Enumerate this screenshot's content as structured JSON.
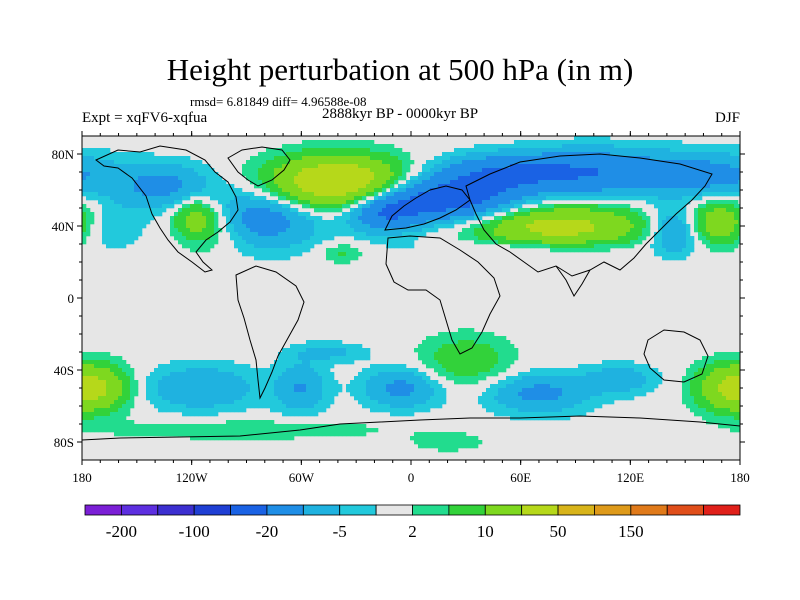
{
  "figure": {
    "title": "Height perturbation at 500 hPa (in m)",
    "stats": "rmsd= 6.81849 diff= 4.96588e-08",
    "left_label": "Expt = xqFV6-xqfua",
    "center_label": "2888kyr BP - 0000kyr BP",
    "right_label": "DJF"
  },
  "map": {
    "projection": "cylindrical equidistant",
    "lon_range": [
      -180,
      180
    ],
    "lat_range": [
      -90,
      90
    ],
    "lon_ticks": [
      {
        "value": -180,
        "label": "180"
      },
      {
        "value": -120,
        "label": "120W"
      },
      {
        "value": -60,
        "label": "60W"
      },
      {
        "value": 0,
        "label": "0"
      },
      {
        "value": 60,
        "label": "60E"
      },
      {
        "value": 120,
        "label": "120E"
      },
      {
        "value": 180,
        "label": "180"
      }
    ],
    "lat_ticks": [
      {
        "value": 80,
        "label": "80N"
      },
      {
        "value": 40,
        "label": "40N"
      },
      {
        "value": 0,
        "label": "0"
      },
      {
        "value": -40,
        "label": "40S"
      },
      {
        "value": -80,
        "label": "80S"
      }
    ],
    "field_features": [
      {
        "lon": -135,
        "lat": 62,
        "value": -12,
        "sx": 18,
        "sy": 9
      },
      {
        "lon": -118,
        "lat": 45,
        "value": 14,
        "sx": 9,
        "sy": 8
      },
      {
        "lon": -108,
        "lat": 38,
        "value": 6,
        "sx": 12,
        "sy": 10
      },
      {
        "lon": -80,
        "lat": 45,
        "value": -15,
        "sx": 22,
        "sy": 12
      },
      {
        "lon": -40,
        "lat": 64,
        "value": 35,
        "sx": 26,
        "sy": 10
      },
      {
        "lon": -15,
        "lat": 48,
        "value": -18,
        "sx": 14,
        "sy": 8
      },
      {
        "lon": 20,
        "lat": 55,
        "value": -28,
        "sx": 28,
        "sy": 9
      },
      {
        "lon": 50,
        "lat": 70,
        "value": -15,
        "sx": 25,
        "sy": 7
      },
      {
        "lon": 100,
        "lat": 70,
        "value": -18,
        "sx": 30,
        "sy": 9
      },
      {
        "lon": 165,
        "lat": 68,
        "value": -12,
        "sx": 25,
        "sy": 9
      },
      {
        "lon": 80,
        "lat": 40,
        "value": 25,
        "sx": 32,
        "sy": 8
      },
      {
        "lon": 60,
        "lat": 28,
        "value": -5,
        "sx": 40,
        "sy": 3
      },
      {
        "lon": 170,
        "lat": 42,
        "value": 18,
        "sx": 14,
        "sy": 9
      },
      {
        "lon": 145,
        "lat": 38,
        "value": -15,
        "sx": 10,
        "sy": 9
      },
      {
        "lon": -170,
        "lat": 40,
        "value": -8,
        "sx": 14,
        "sy": 9
      },
      {
        "lon": -38,
        "lat": 25,
        "value": 6,
        "sx": 8,
        "sy": 4
      },
      {
        "lon": -45,
        "lat": -30,
        "value": -6,
        "sx": 15,
        "sy": 4
      },
      {
        "lon": -115,
        "lat": -50,
        "value": -10,
        "sx": 22,
        "sy": 9
      },
      {
        "lon": -60,
        "lat": -50,
        "value": -10,
        "sx": 10,
        "sy": 10
      },
      {
        "lon": -5,
        "lat": -50,
        "value": -12,
        "sx": 15,
        "sy": 8
      },
      {
        "lon": 30,
        "lat": -35,
        "value": 9,
        "sx": 18,
        "sy": 10
      },
      {
        "lon": 70,
        "lat": -53,
        "value": -12,
        "sx": 20,
        "sy": 8
      },
      {
        "lon": 115,
        "lat": -45,
        "value": -8,
        "sx": 14,
        "sy": 6
      },
      {
        "lon": -170,
        "lat": -50,
        "value": 18,
        "sx": 12,
        "sy": 9
      },
      {
        "lon": 172,
        "lat": -50,
        "value": 18,
        "sx": 12,
        "sy": 9
      },
      {
        "lon": -90,
        "lat": -73,
        "value": 5,
        "sx": 55,
        "sy": 4
      },
      {
        "lon": 20,
        "lat": -80,
        "value": 4,
        "sx": 15,
        "sy": 4
      }
    ],
    "colors": {
      "land": "#000000",
      "neutral": "#e6e6e6"
    }
  },
  "colorbar": {
    "boxes": [
      "#7b1fd6",
      "#5d2fe0",
      "#3c2fd0",
      "#1f3fd4",
      "#1a62e4",
      "#1f8ee6",
      "#1fb2e0",
      "#22c9dc",
      "#e6e6e6",
      "#22dc8e",
      "#32d23a",
      "#7ed81f",
      "#b6d81a",
      "#d8b41a",
      "#de9a1a",
      "#e07a1a",
      "#e04e1a",
      "#e0201a"
    ],
    "labels": [
      "-200",
      "-100",
      "-20",
      "-5",
      "2",
      "10",
      "50",
      "150"
    ],
    "thresholds": [
      -200,
      -150,
      -100,
      -50,
      -20,
      -10,
      -5,
      -2,
      2,
      5,
      10,
      20,
      50,
      100,
      150,
      200
    ]
  }
}
